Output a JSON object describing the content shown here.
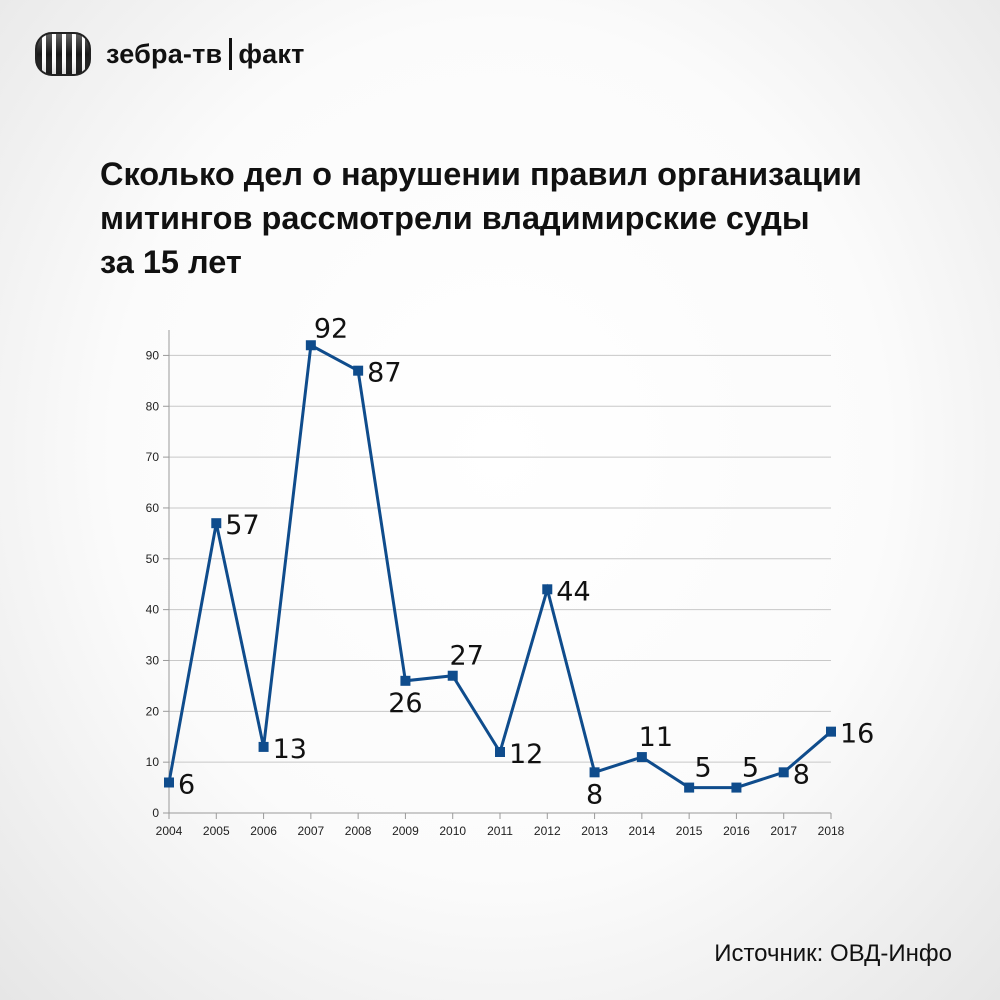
{
  "brand": {
    "name": "зебра-тв",
    "section": "факт"
  },
  "title_lines": [
    "Сколько дел о нарушении правил организации",
    "митингов рассмотрели владимирские суды",
    "за 15 лет"
  ],
  "source": "Источник: ОВД-Инфо",
  "colors": {
    "series": "#0f4c8c",
    "grid": "#c8c8c8",
    "axis": "#9a9a9a"
  },
  "icons": {
    "logo": "zebra-stripes-logo-icon"
  },
  "chart_data": {
    "type": "line",
    "title": "Сколько дел о нарушении правил организации митингов рассмотрели владимирские суды за 15 лет",
    "xlabel": "",
    "ylabel": "",
    "x": [
      "2004",
      "2005",
      "2006",
      "2007",
      "2008",
      "2009",
      "2010",
      "2011",
      "2012",
      "2013",
      "2014",
      "2015",
      "2016",
      "2017",
      "2018"
    ],
    "values": [
      6,
      57,
      13,
      92,
      87,
      26,
      27,
      12,
      44,
      8,
      11,
      5,
      5,
      8,
      16
    ],
    "data_labels": [
      "6",
      "57",
      "13",
      "92",
      "87",
      "26",
      "27",
      "12",
      "44",
      "8",
      "11",
      "5",
      "5",
      "8",
      "16"
    ],
    "ylim": [
      0,
      95
    ],
    "yticks": [
      0,
      10,
      20,
      30,
      40,
      50,
      60,
      70,
      80,
      90
    ],
    "grid": true,
    "marker": "square",
    "legend": "none"
  }
}
